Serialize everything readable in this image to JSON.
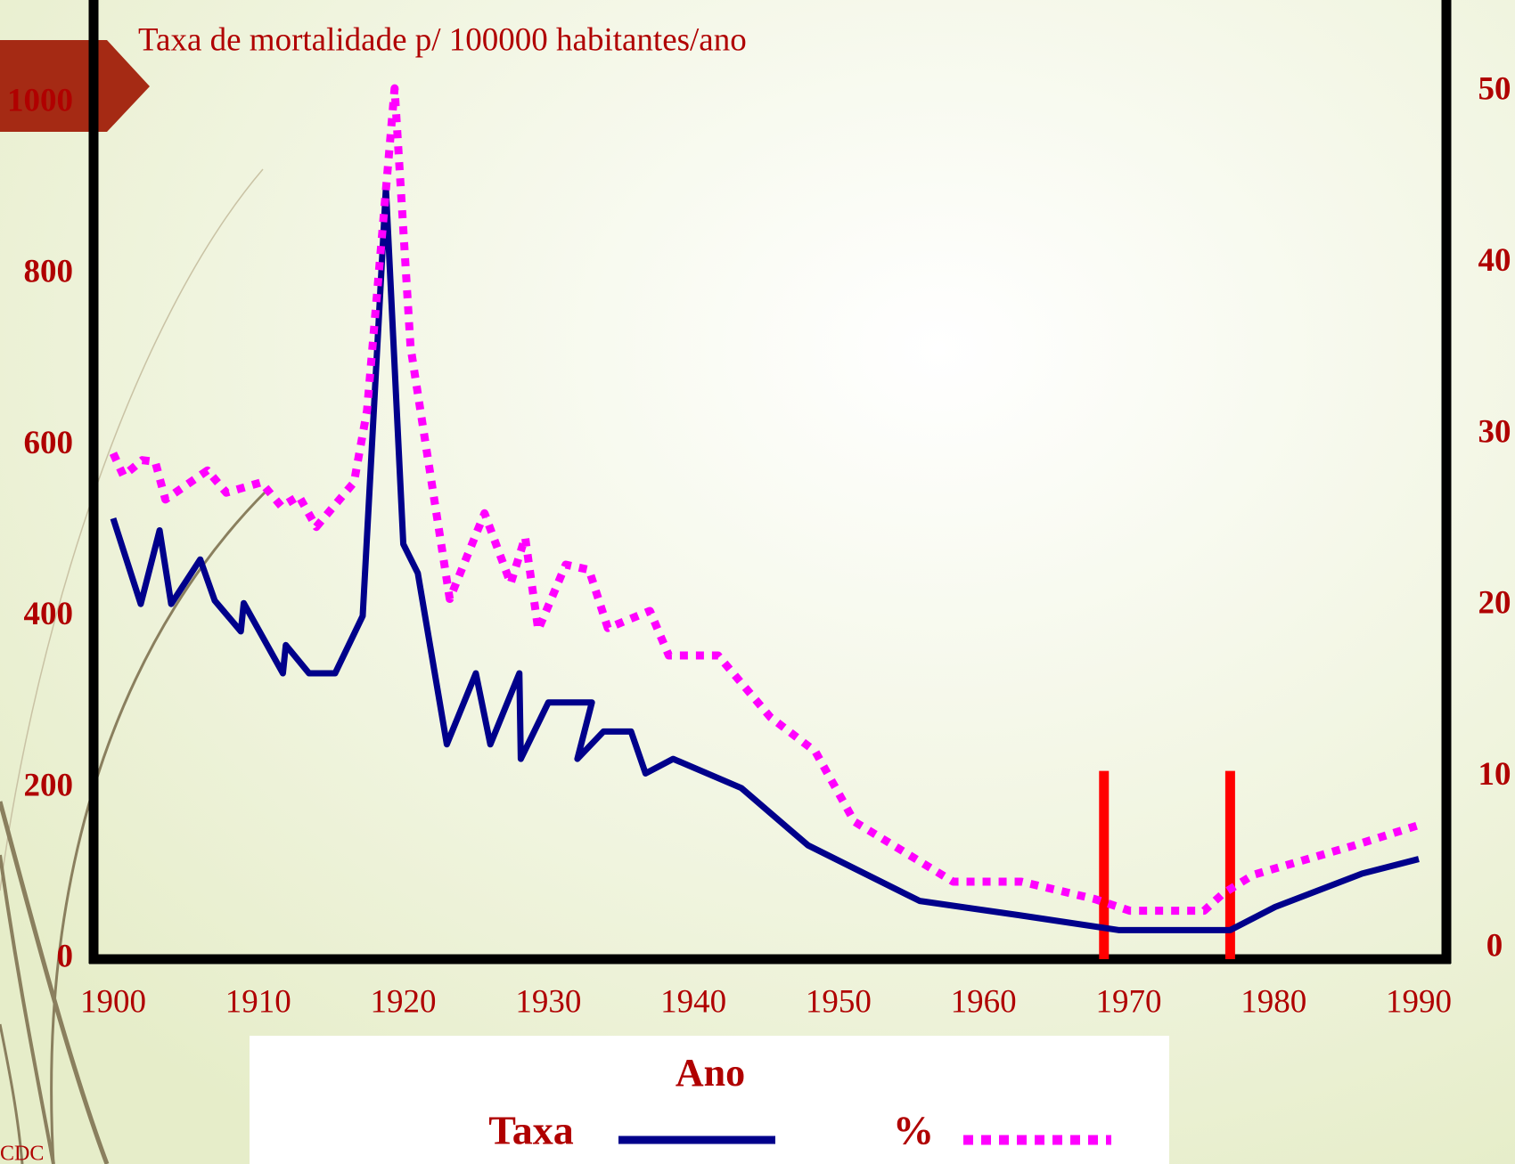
{
  "chart_data": {
    "type": "line",
    "title": "Taxa  de mortalidade p/ 100000 habitantes/ano",
    "x_label": "Ano",
    "source": "CDC",
    "xlim": [
      1900,
      1990
    ],
    "xticks": [
      1900,
      1910,
      1920,
      1930,
      1940,
      1950,
      1960,
      1970,
      1980,
      1990
    ],
    "ylim": [
      0,
      1000
    ],
    "yticks": [
      0,
      200,
      400,
      600,
      800,
      1000
    ],
    "y2lim": [
      0,
      50
    ],
    "y2ticks": [
      0,
      10,
      20,
      30,
      40,
      50
    ],
    "series": [
      {
        "name": "Taxa",
        "color": "#00008b",
        "style": "solid",
        "x": [
          1900,
          1901.9,
          1903.2,
          1904,
          1906,
          1907,
          1908.8,
          1909,
          1911.7,
          1911.9,
          1913.5,
          1915.3,
          1917.2,
          1918.8,
          1920,
          1921,
          1923,
          1925,
          1926,
          1928,
          1928.1,
          1930,
          1933,
          1932,
          1933.8,
          1935.7,
          1936.7,
          1938.6,
          1943.3,
          1947.9,
          1955.6,
          1962.6,
          1969.3,
          1977,
          1980.1,
          1986.1,
          1990
        ],
        "values": [
          515,
          415,
          501,
          415,
          467,
          419,
          383,
          416,
          334,
          367,
          334,
          334,
          401,
          901,
          485,
          451,
          251,
          334,
          251,
          334,
          234,
          300,
          300,
          234,
          266,
          266,
          217,
          234,
          200,
          133,
          68,
          51,
          34,
          34,
          61,
          100,
          117
        ]
      },
      {
        "name": "%",
        "color": "#ff00ff",
        "style": "dotted",
        "axis": "y2",
        "x": [
          1900,
          1900.7,
          1901.3,
          1902,
          1902.9,
          1903.6,
          1906.5,
          1907.8,
          1910.2,
          1911.6,
          1912.8,
          1914,
          1916.6,
          1917.5,
          1919.4,
          1920.5,
          1923.2,
          1925.6,
          1927.4,
          1928.4,
          1929.3,
          1931.2,
          1932.8,
          1934.1,
          1937,
          1938.3,
          1941.7,
          1945.3,
          1948.4,
          1951.1,
          1957.9,
          1962.6,
          1967.6,
          1970.1,
          1975.2,
          1976.5,
          1978.6,
          1985.5,
          1990
        ],
        "values": [
          28.9,
          27.6,
          28.0,
          28.5,
          28.4,
          26.2,
          27.9,
          26.6,
          27.2,
          25.8,
          26.4,
          24.6,
          27.2,
          31.4,
          50.2,
          35.1,
          20.4,
          25.4,
          21.3,
          24.0,
          18.6,
          22.4,
          22.1,
          18.7,
          19.7,
          17.1,
          17.1,
          13.5,
          11.5,
          7.4,
          3.9,
          3.9,
          2.9,
          2.2,
          2.2,
          3.2,
          4.3,
          6.0,
          7.2
        ]
      }
    ],
    "vlines": [
      1968.3,
      1977
    ],
    "vline_top": 220,
    "vline_color": "#ff0000"
  }
}
